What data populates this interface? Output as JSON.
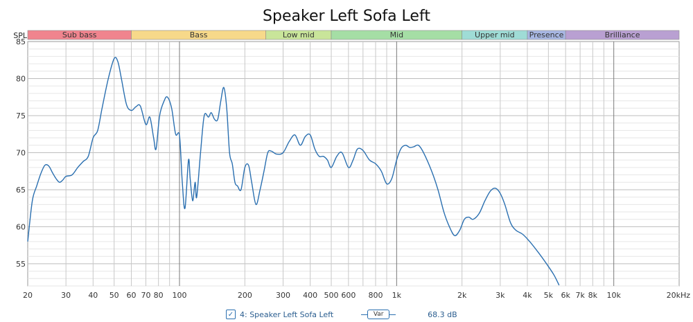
{
  "chart_data": {
    "type": "line",
    "title": "Speaker Left Sofa Left",
    "ylabel": "SPL",
    "xscale": "log",
    "xlim": [
      20,
      20000
    ],
    "ylim": [
      52,
      85
    ],
    "grid": true,
    "yticks": [
      55,
      60,
      65,
      70,
      75,
      80,
      85
    ],
    "xticks": [
      {
        "value": 20,
        "label": "20"
      },
      {
        "value": 30,
        "label": "30"
      },
      {
        "value": 40,
        "label": "40"
      },
      {
        "value": 50,
        "label": "50"
      },
      {
        "value": 60,
        "label": "60"
      },
      {
        "value": 70,
        "label": "70"
      },
      {
        "value": 80,
        "label": "80"
      },
      {
        "value": 100,
        "label": "100"
      },
      {
        "value": 200,
        "label": "200"
      },
      {
        "value": 300,
        "label": "300"
      },
      {
        "value": 400,
        "label": "400"
      },
      {
        "value": 500,
        "label": "500"
      },
      {
        "value": 600,
        "label": "600"
      },
      {
        "value": 800,
        "label": "800"
      },
      {
        "value": 1000,
        "label": "1k"
      },
      {
        "value": 2000,
        "label": "2k"
      },
      {
        "value": 3000,
        "label": "3k"
      },
      {
        "value": 4000,
        "label": "4k"
      },
      {
        "value": 5000,
        "label": "5k"
      },
      {
        "value": 6000,
        "label": "6k"
      },
      {
        "value": 7000,
        "label": "7k"
      },
      {
        "value": 8000,
        "label": "8k"
      },
      {
        "value": 10000,
        "label": "10k"
      },
      {
        "value": 20000,
        "label": "20kHz"
      }
    ],
    "bands": [
      {
        "label": "Sub bass",
        "from": 20,
        "to": 60,
        "color": "#f0848e"
      },
      {
        "label": "Bass",
        "from": 60,
        "to": 250,
        "color": "#f7d98a"
      },
      {
        "label": "Low mid",
        "from": 250,
        "to": 500,
        "color": "#c9e59a"
      },
      {
        "label": "Mid",
        "from": 500,
        "to": 2000,
        "color": "#a5dea5"
      },
      {
        "label": "Upper mid",
        "from": 2000,
        "to": 4000,
        "color": "#9fdcd6"
      },
      {
        "label": "Presence",
        "from": 4000,
        "to": 6000,
        "color": "#a8b7e3"
      },
      {
        "label": "Brilliance",
        "from": 6000,
        "to": 20000,
        "color": "#b9a0d2"
      }
    ],
    "series": [
      {
        "name": "4: Speaker Left Sofa Left",
        "color": "#2a6fb0",
        "points": [
          [
            20,
            58.0
          ],
          [
            21,
            63.5
          ],
          [
            22,
            65.5
          ],
          [
            23,
            67.2
          ],
          [
            24,
            68.3
          ],
          [
            25,
            68.2
          ],
          [
            26,
            67.3
          ],
          [
            27,
            66.5
          ],
          [
            28,
            66.0
          ],
          [
            29,
            66.3
          ],
          [
            30,
            66.8
          ],
          [
            32,
            67.0
          ],
          [
            34,
            68.0
          ],
          [
            36,
            68.8
          ],
          [
            38,
            69.5
          ],
          [
            40,
            72.0
          ],
          [
            42,
            73.0
          ],
          [
            44,
            76.0
          ],
          [
            47,
            80.0
          ],
          [
            50,
            82.7
          ],
          [
            52,
            82.3
          ],
          [
            54,
            80.0
          ],
          [
            57,
            76.5
          ],
          [
            60,
            75.7
          ],
          [
            63,
            76.2
          ],
          [
            66,
            76.3
          ],
          [
            70,
            73.8
          ],
          [
            73,
            74.8
          ],
          [
            76,
            72.0
          ],
          [
            78,
            70.5
          ],
          [
            81,
            75.0
          ],
          [
            85,
            77.0
          ],
          [
            88,
            77.5
          ],
          [
            92,
            76.0
          ],
          [
            96,
            72.5
          ],
          [
            100,
            72.3
          ],
          [
            103,
            66.0
          ],
          [
            106,
            62.5
          ],
          [
            110,
            69.0
          ],
          [
            112,
            66.5
          ],
          [
            115,
            63.5
          ],
          [
            118,
            66.0
          ],
          [
            120,
            64.0
          ],
          [
            125,
            70.0
          ],
          [
            130,
            75.0
          ],
          [
            136,
            74.8
          ],
          [
            140,
            75.4
          ],
          [
            145,
            74.5
          ],
          [
            150,
            74.5
          ],
          [
            155,
            77.0
          ],
          [
            160,
            78.8
          ],
          [
            165,
            76.0
          ],
          [
            170,
            70.0
          ],
          [
            175,
            68.5
          ],
          [
            180,
            66.0
          ],
          [
            185,
            65.5
          ],
          [
            192,
            65.0
          ],
          [
            200,
            68.0
          ],
          [
            208,
            68.3
          ],
          [
            215,
            66.0
          ],
          [
            225,
            63.0
          ],
          [
            235,
            65.0
          ],
          [
            245,
            67.5
          ],
          [
            255,
            70.0
          ],
          [
            265,
            70.2
          ],
          [
            280,
            69.8
          ],
          [
            300,
            70.0
          ],
          [
            320,
            71.5
          ],
          [
            340,
            72.4
          ],
          [
            360,
            71.0
          ],
          [
            380,
            72.2
          ],
          [
            400,
            72.4
          ],
          [
            420,
            70.5
          ],
          [
            440,
            69.5
          ],
          [
            460,
            69.5
          ],
          [
            480,
            69.0
          ],
          [
            500,
            68.0
          ],
          [
            530,
            69.5
          ],
          [
            560,
            70.0
          ],
          [
            600,
            68.0
          ],
          [
            630,
            69.0
          ],
          [
            660,
            70.5
          ],
          [
            700,
            70.3
          ],
          [
            750,
            69.0
          ],
          [
            800,
            68.5
          ],
          [
            850,
            67.5
          ],
          [
            900,
            65.8
          ],
          [
            950,
            66.5
          ],
          [
            1000,
            69.0
          ],
          [
            1050,
            70.6
          ],
          [
            1100,
            71.0
          ],
          [
            1150,
            70.7
          ],
          [
            1200,
            70.8
          ],
          [
            1260,
            71.0
          ],
          [
            1330,
            70.0
          ],
          [
            1450,
            67.5
          ],
          [
            1550,
            65.0
          ],
          [
            1650,
            62.0
          ],
          [
            1750,
            60.0
          ],
          [
            1850,
            58.8
          ],
          [
            1950,
            59.5
          ],
          [
            2050,
            61.0
          ],
          [
            2150,
            61.3
          ],
          [
            2250,
            61.0
          ],
          [
            2400,
            61.8
          ],
          [
            2550,
            63.5
          ],
          [
            2700,
            64.8
          ],
          [
            2850,
            65.2
          ],
          [
            3000,
            64.5
          ],
          [
            3150,
            63.0
          ],
          [
            3350,
            60.5
          ],
          [
            3550,
            59.5
          ],
          [
            3800,
            59.0
          ],
          [
            4100,
            58.0
          ],
          [
            4500,
            56.5
          ],
          [
            4900,
            55.0
          ],
          [
            5300,
            53.5
          ],
          [
            5600,
            52.1
          ]
        ]
      }
    ]
  },
  "legend": {
    "series_label": "4: Speaker Left Sofa Left",
    "var_label": "Var",
    "value": "68.3 dB",
    "checked": true,
    "check_glyph": "✓"
  }
}
